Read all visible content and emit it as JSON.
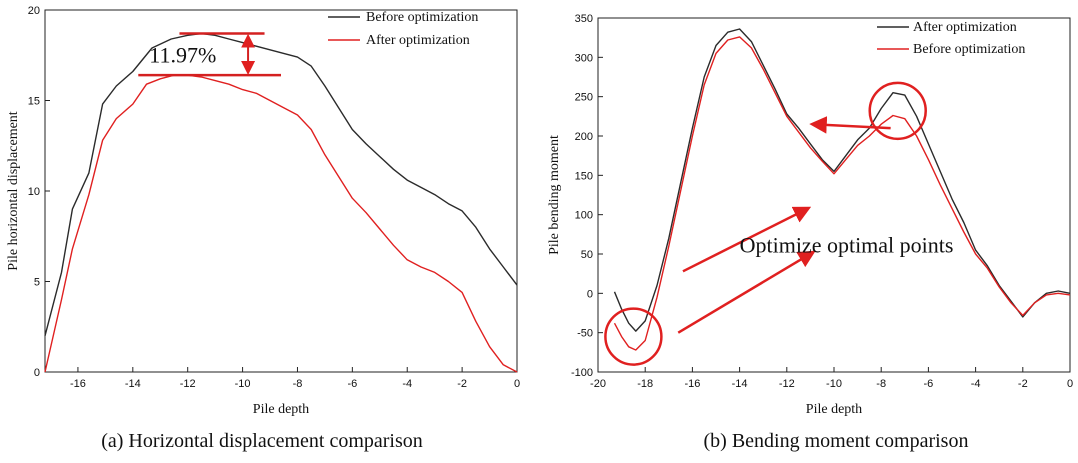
{
  "chart_data": [
    {
      "id": "a",
      "type": "line",
      "caption": "(a) Horizontal displacement comparison",
      "xlabel": "Pile depth",
      "ylabel": "Pile horizontal displacement",
      "xlim": [
        -17.2,
        0
      ],
      "ylim": [
        0,
        20
      ],
      "xticks": [
        -16,
        -14,
        -12,
        -10,
        -8,
        -6,
        -4,
        -2,
        0
      ],
      "yticks": [
        0,
        5,
        10,
        15,
        20
      ],
      "xtick_labels": [
        "-16",
        "-14",
        "-12",
        "-10",
        "-8",
        "-6",
        "-4",
        "-2",
        "0"
      ],
      "ytick_labels": [
        "0",
        "5",
        "10",
        "15",
        "20"
      ],
      "legend_position": "top-right",
      "series": [
        {
          "name": "Before optimization",
          "color": "#2b2b2b",
          "x": [
            -17.2,
            -16.6,
            -16.2,
            -15.6,
            -15.1,
            -14.6,
            -14.0,
            -13.3,
            -12.6,
            -12.0,
            -11.5,
            -11.0,
            -10.5,
            -10.0,
            -9.5,
            -9.0,
            -8.5,
            -8.0,
            -7.5,
            -7.0,
            -6.5,
            -6.0,
            -5.5,
            -5.0,
            -4.5,
            -4.0,
            -3.5,
            -3.0,
            -2.5,
            -2.0,
            -1.5,
            -1.0,
            -0.5,
            0.0
          ],
          "y": [
            2.0,
            5.5,
            9.0,
            11.0,
            14.8,
            15.8,
            16.6,
            17.9,
            18.4,
            18.6,
            18.7,
            18.6,
            18.4,
            18.2,
            18.0,
            17.8,
            17.6,
            17.4,
            16.9,
            15.8,
            14.6,
            13.4,
            12.6,
            11.9,
            11.2,
            10.6,
            10.2,
            9.8,
            9.3,
            8.9,
            8.0,
            6.8,
            5.8,
            4.8
          ]
        },
        {
          "name": "After optimization",
          "color": "#e02020",
          "x": [
            -17.2,
            -16.6,
            -16.2,
            -15.6,
            -15.1,
            -14.6,
            -14.0,
            -13.5,
            -13.0,
            -12.5,
            -12.0,
            -11.5,
            -11.0,
            -10.5,
            -10.0,
            -9.5,
            -9.0,
            -8.5,
            -8.0,
            -7.5,
            -7.0,
            -6.5,
            -6.0,
            -5.5,
            -5.0,
            -4.5,
            -4.0,
            -3.5,
            -3.0,
            -2.5,
            -2.0,
            -1.5,
            -1.0,
            -0.5,
            0.0
          ],
          "y": [
            0.0,
            4.0,
            6.8,
            9.8,
            12.8,
            14.0,
            14.8,
            15.9,
            16.2,
            16.4,
            16.4,
            16.3,
            16.1,
            15.9,
            15.6,
            15.4,
            15.0,
            14.6,
            14.2,
            13.4,
            12.0,
            10.8,
            9.6,
            8.8,
            7.9,
            7.0,
            6.2,
            5.8,
            5.5,
            5.0,
            4.4,
            2.8,
            1.4,
            0.4,
            0.0
          ]
        }
      ],
      "annotations": [
        {
          "type": "gap-marker",
          "label": "11.97%",
          "color": "#d42020",
          "top_y": 18.7,
          "bottom_y": 16.4,
          "x_from": -13.8,
          "x_to": -8.6
        }
      ]
    },
    {
      "id": "b",
      "type": "line",
      "caption": "(b) Bending moment comparison",
      "xlabel": "Pile depth",
      "ylabel": "Pile bending moment",
      "xlim": [
        -20,
        0
      ],
      "ylim": [
        -100,
        350
      ],
      "xticks": [
        -20,
        -18,
        -16,
        -14,
        -12,
        -10,
        -8,
        -6,
        -4,
        -2,
        0
      ],
      "yticks": [
        -100,
        -50,
        0,
        50,
        100,
        150,
        200,
        250,
        300,
        350
      ],
      "xtick_labels": [
        "-20",
        "-18",
        "-16",
        "-14",
        "-12",
        "-10",
        "-8",
        "-6",
        "-4",
        "-2",
        "0"
      ],
      "ytick_labels": [
        "-100",
        "-50",
        "0",
        "50",
        "100",
        "150",
        "200",
        "250",
        "300",
        "350"
      ],
      "legend_position": "top-right",
      "series": [
        {
          "name": "After optimization",
          "color": "#2b2b2b",
          "x": [
            -19.3,
            -19.0,
            -18.7,
            -18.4,
            -18.0,
            -17.5,
            -17.0,
            -16.5,
            -16.0,
            -15.5,
            -15.0,
            -14.5,
            -14.0,
            -13.5,
            -13.0,
            -12.5,
            -12.0,
            -11.5,
            -11.0,
            -10.5,
            -10.0,
            -9.5,
            -9.0,
            -8.5,
            -8.0,
            -7.5,
            -7.0,
            -6.5,
            -6.0,
            -5.5,
            -5.0,
            -4.5,
            -4.0,
            -3.5,
            -3.0,
            -2.5,
            -2.0,
            -1.5,
            -1.0,
            -0.5,
            0.0
          ],
          "y": [
            2,
            -20,
            -38,
            -48,
            -35,
            10,
            70,
            140,
            210,
            275,
            315,
            332,
            336,
            320,
            290,
            260,
            228,
            210,
            190,
            170,
            155,
            175,
            195,
            210,
            235,
            255,
            252,
            225,
            190,
            155,
            120,
            90,
            55,
            35,
            10,
            -10,
            -30,
            -12,
            0,
            3,
            0
          ]
        },
        {
          "name": "Before optimization",
          "color": "#e02020",
          "x": [
            -19.3,
            -19.0,
            -18.7,
            -18.4,
            -18.0,
            -17.5,
            -17.0,
            -16.5,
            -16.0,
            -15.5,
            -15.0,
            -14.5,
            -14.0,
            -13.5,
            -13.0,
            -12.5,
            -12.0,
            -11.5,
            -11.0,
            -10.5,
            -10.0,
            -9.5,
            -9.0,
            -8.5,
            -8.0,
            -7.5,
            -7.0,
            -6.5,
            -6.0,
            -5.5,
            -5.0,
            -4.5,
            -4.0,
            -3.5,
            -3.0,
            -2.5,
            -2.0,
            -1.5,
            -1.0,
            -0.5,
            0.0
          ],
          "y": [
            -38,
            -55,
            -68,
            -72,
            -60,
            -5,
            60,
            130,
            200,
            265,
            305,
            322,
            326,
            312,
            285,
            255,
            225,
            205,
            185,
            168,
            152,
            170,
            188,
            200,
            215,
            226,
            222,
            200,
            170,
            138,
            108,
            78,
            50,
            32,
            8,
            -12,
            -28,
            -12,
            -2,
            0,
            -2
          ]
        }
      ],
      "annotations": [
        {
          "type": "text",
          "label": "Optimize optimal points",
          "color": "#111111"
        },
        {
          "type": "circle",
          "x": -18.5,
          "y": -55,
          "color": "#e02020"
        },
        {
          "type": "circle",
          "x": -7.3,
          "y": 232,
          "color": "#e02020"
        },
        {
          "type": "arrow",
          "from": [
            -16.4,
            28
          ],
          "to": [
            -11.1,
            108
          ],
          "color": "#e02020"
        },
        {
          "type": "arrow",
          "from": [
            -16.6,
            -50
          ],
          "to": [
            -10.9,
            52
          ],
          "color": "#e02020"
        },
        {
          "type": "arrow",
          "from": [
            -7.6,
            210
          ],
          "to": [
            -10.9,
            215
          ],
          "color": "#e02020"
        }
      ]
    }
  ]
}
